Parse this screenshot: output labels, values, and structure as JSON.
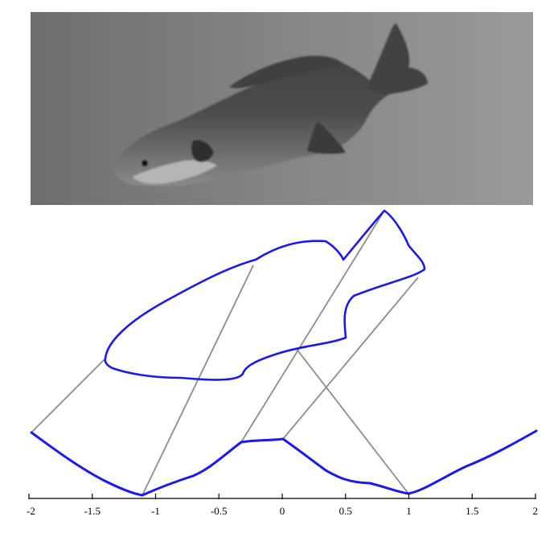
{
  "photo": {
    "subject": "fish-photograph",
    "background_color": "#8a8a8a"
  },
  "diagram": {
    "outline_color": "#1a1aee",
    "correspondence_line_color": "#8c8c8c",
    "x_axis": {
      "ticks": [
        "-2",
        "-1.5",
        "-1",
        "-0.5",
        "0",
        "0.5",
        "1",
        "1.5",
        "2"
      ],
      "range": [
        -2,
        2
      ]
    }
  }
}
